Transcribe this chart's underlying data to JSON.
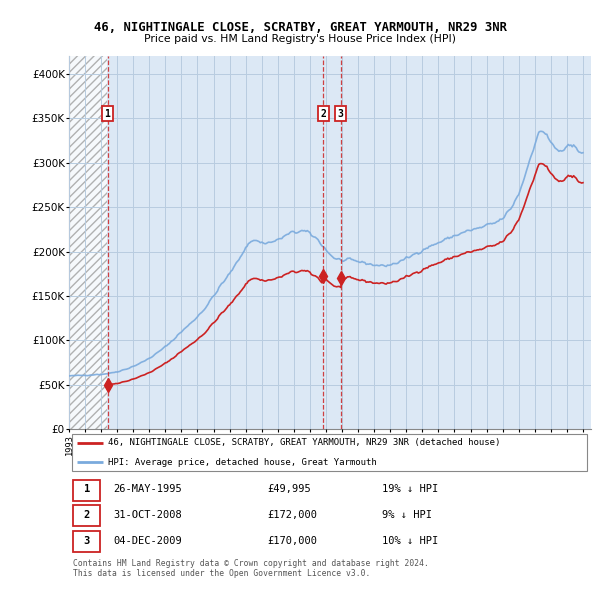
{
  "title": "46, NIGHTINGALE CLOSE, SCRATBY, GREAT YARMOUTH, NR29 3NR",
  "subtitle": "Price paid vs. HM Land Registry's House Price Index (HPI)",
  "ylim": [
    0,
    420000
  ],
  "yticks": [
    0,
    50000,
    100000,
    150000,
    200000,
    250000,
    300000,
    350000,
    400000
  ],
  "hpi_color": "#7aaadd",
  "property_color": "#cc2222",
  "bg_color": "#dce8f5",
  "grid_color": "#b8cce0",
  "xlim_start": 1993.0,
  "xlim_end": 2025.5,
  "hatch_end": 1995.37,
  "tx1_x": 1995.4,
  "tx1_y": 49995,
  "tx2_x": 2008.83,
  "tx2_y": 172000,
  "tx3_x": 2009.92,
  "tx3_y": 170000,
  "legend_property": "46, NIGHTINGALE CLOSE, SCRATBY, GREAT YARMOUTH, NR29 3NR (detached house)",
  "legend_hpi": "HPI: Average price, detached house, Great Yarmouth",
  "table_rows": [
    {
      "label": "1",
      "date": "26-MAY-1995",
      "price": "£49,995",
      "hpi_rel": "19% ↓ HPI"
    },
    {
      "label": "2",
      "date": "31-OCT-2008",
      "price": "£172,000",
      "hpi_rel": "9% ↓ HPI"
    },
    {
      "label": "3",
      "date": "04-DEC-2009",
      "price": "£170,000",
      "hpi_rel": "10% ↓ HPI"
    }
  ],
  "footer": "Contains HM Land Registry data © Crown copyright and database right 2024.\nThis data is licensed under the Open Government Licence v3.0."
}
